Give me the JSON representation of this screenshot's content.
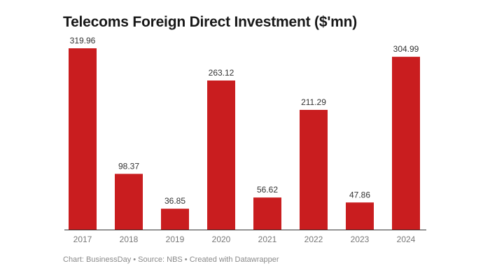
{
  "chart_data": {
    "type": "bar",
    "title": "Telecoms Foreign Direct Investment ($'mn)",
    "categories": [
      "2017",
      "2018",
      "2019",
      "2020",
      "2021",
      "2022",
      "2023",
      "2024"
    ],
    "values": [
      319.96,
      98.37,
      36.85,
      263.12,
      56.62,
      211.29,
      47.86,
      304.99
    ],
    "value_labels": [
      "319.96",
      "98.37",
      "36.85",
      "263.12",
      "56.62",
      "211.29",
      "47.86",
      "304.99"
    ],
    "xlabel": "",
    "ylabel": "",
    "ylim": [
      0,
      320
    ],
    "grid": false,
    "bar_color": "#c91d1f",
    "footer": "Chart: BusinessDay • Source: NBS • Created with Datawrapper"
  }
}
